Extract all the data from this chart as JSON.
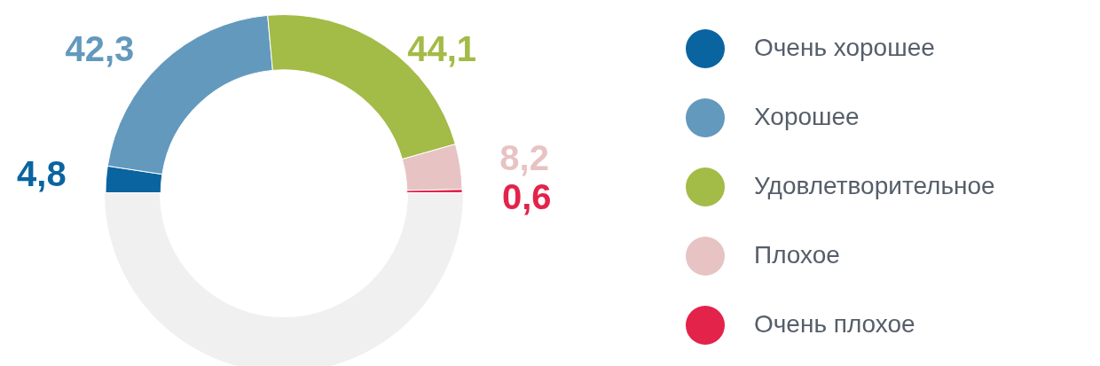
{
  "chart_data": {
    "type": "donut",
    "categories": [
      "Очень хорошее",
      "Хорошее",
      "Удовлетворительное",
      "Плохое",
      "Очень плохое"
    ],
    "values": [
      4.8,
      42.3,
      44.1,
      8.2,
      0.6
    ],
    "colors": [
      "#0a64a0",
      "#6399bd",
      "#a3bb47",
      "#e8c3c3",
      "#e3234a"
    ],
    "value_labels": [
      "4,8",
      "42,3",
      "44,1",
      "8,2",
      "0,6"
    ],
    "legend": "right"
  }
}
